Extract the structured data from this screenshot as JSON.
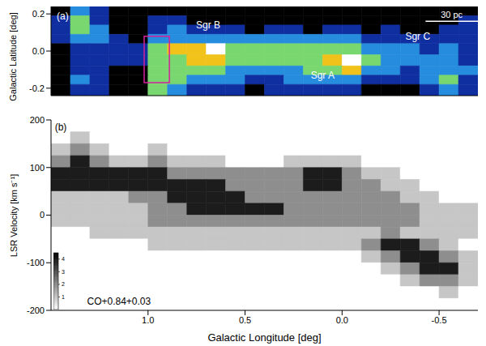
{
  "chart_data": [
    {
      "type": "heatmap",
      "ylabel": "Galactic Latitude [deg]",
      "color": "jet",
      "xlim": [
        1.5,
        -0.7
      ],
      "ylim": [
        -0.24,
        0.24
      ],
      "xticks": [
        {
          "value": 1.0,
          "label": "1.0"
        },
        0.5,
        {
          "value": 0,
          "label": "0.0"
        },
        -0.5
      ],
      "yticks": [
        -0.2,
        {
          "value": 0,
          "label": "0.0"
        },
        0.2
      ],
      "tick_labels": "y",
      "x_edges": [
        1.5,
        1.4,
        1.3,
        1.2,
        1.1,
        1.0,
        0.9,
        0.8,
        0.7,
        0.6,
        0.5,
        0.4,
        0.3,
        0.2,
        0.1,
        0.0,
        -0.1,
        -0.2,
        -0.3,
        -0.4,
        -0.5,
        -0.6,
        -0.7
      ],
      "y_edges": [
        0.24,
        0.19,
        0.14,
        0.09,
        0.04,
        -0.02,
        -0.08,
        -0.13,
        -0.18,
        -0.24
      ],
      "zlim": [
        0,
        5
      ],
      "z": [
        [
          0,
          2,
          1,
          0,
          0,
          0,
          0,
          0,
          0,
          0,
          0,
          0,
          0,
          0,
          0,
          0,
          0,
          0,
          0,
          0,
          0,
          0
        ],
        [
          1,
          3,
          1,
          0,
          0,
          1,
          1,
          0,
          0,
          0,
          0,
          0,
          0,
          0,
          0,
          0,
          0,
          0,
          0,
          0,
          0,
          1
        ],
        [
          1,
          3,
          2,
          0,
          0,
          1,
          2,
          1,
          1,
          1,
          0,
          1,
          1,
          0,
          1,
          1,
          0,
          1,
          0,
          0,
          1,
          1
        ],
        [
          1,
          2,
          2,
          1,
          0,
          2,
          2,
          2,
          2,
          2,
          2,
          2,
          2,
          2,
          2,
          2,
          1,
          1,
          1,
          1,
          1,
          1
        ],
        [
          0,
          1,
          1,
          1,
          1,
          3,
          4,
          4,
          5,
          3,
          3,
          3,
          3,
          3,
          3,
          3,
          2,
          2,
          2,
          1,
          2,
          1
        ],
        [
          0,
          1,
          1,
          1,
          1,
          3,
          3,
          4,
          4,
          3,
          3,
          3,
          3,
          3,
          4,
          5,
          3,
          2,
          2,
          2,
          2,
          1
        ],
        [
          0,
          1,
          1,
          0,
          0,
          3,
          3,
          3,
          3,
          2,
          2,
          2,
          2,
          3,
          3,
          4,
          2,
          2,
          1,
          2,
          2,
          2
        ],
        [
          0,
          2,
          1,
          0,
          0,
          3,
          3,
          2,
          2,
          2,
          1,
          1,
          2,
          2,
          2,
          2,
          1,
          1,
          1,
          2,
          3,
          1
        ],
        [
          0,
          1,
          1,
          0,
          0,
          3,
          2,
          1,
          1,
          1,
          0,
          1,
          1,
          1,
          1,
          1,
          0,
          0,
          0,
          1,
          2,
          1
        ]
      ],
      "box": {
        "x": [
          1.02,
          0.89
        ],
        "y": [
          0.08,
          -0.17
        ],
        "color": "#d4209c"
      },
      "scale_bar": {
        "label": "30 pc",
        "x": [
          -0.43,
          -0.7
        ],
        "y": 0.16
      },
      "annotations": [
        {
          "text": "(a)",
          "x": 1.44,
          "y": 0.19
        },
        {
          "text": "Sgr B",
          "x": 0.69,
          "y": 0.14
        },
        {
          "text": "Sgr A",
          "x": 0.1,
          "y": -0.13
        },
        {
          "text": "Sgr C",
          "x": -0.39,
          "y": 0.08
        }
      ]
    },
    {
      "type": "heatmap",
      "xlabel": "Galactic Longitude [deg]",
      "ylabel": "LSR Velocity [km s⁻¹]",
      "color": "gray",
      "xlim": [
        1.5,
        -0.7
      ],
      "ylim": [
        -200,
        200
      ],
      "xticks": [
        {
          "value": 1.0,
          "label": "1.0"
        },
        0.5,
        {
          "value": 0,
          "label": "0.0"
        },
        -0.5
      ],
      "yticks": [
        -200,
        -100,
        0,
        100,
        200
      ],
      "x_edges": [
        1.5,
        1.4,
        1.3,
        1.2,
        1.1,
        1.0,
        0.9,
        0.8,
        0.7,
        0.6,
        0.5,
        0.4,
        0.3,
        0.2,
        0.1,
        0.0,
        -0.1,
        -0.2,
        -0.3,
        -0.4,
        -0.5,
        -0.6,
        -0.7
      ],
      "y_edges": [
        200,
        175,
        150,
        125,
        100,
        75,
        50,
        25,
        0,
        -25,
        -50,
        -75,
        -100,
        -125,
        -150,
        -175,
        -200
      ],
      "colorbar": {
        "range": [
          0,
          4.5
        ],
        "ticks": [
          1,
          2,
          3,
          4
        ]
      },
      "z": [
        [
          0,
          0,
          0,
          0,
          0,
          0,
          0,
          0,
          0,
          0,
          0,
          0,
          0,
          0,
          0,
          0,
          0,
          0,
          0,
          0,
          0,
          0
        ],
        [
          0,
          1,
          0,
          0,
          0,
          0,
          0,
          0,
          0,
          0,
          0,
          0,
          0,
          0,
          0,
          0,
          0,
          0,
          0,
          0,
          0,
          0
        ],
        [
          1,
          2,
          1,
          0,
          0,
          1,
          0,
          0,
          0,
          0,
          0,
          0,
          0,
          0,
          0,
          0,
          0,
          0,
          0,
          0,
          0,
          0
        ],
        [
          2,
          4,
          2,
          1,
          1,
          2,
          1,
          1,
          1,
          0,
          0,
          0,
          1,
          1,
          1,
          1,
          0,
          0,
          0,
          0,
          0,
          0
        ],
        [
          4,
          4,
          4,
          4,
          4,
          4,
          2,
          2,
          2,
          2,
          2,
          2,
          2,
          4,
          4,
          2,
          1,
          1,
          0,
          0,
          0,
          0
        ],
        [
          4,
          4,
          4,
          4,
          4,
          4,
          4,
          4,
          4,
          2,
          2,
          2,
          2,
          4,
          4,
          2,
          2,
          1,
          1,
          0,
          0,
          0
        ],
        [
          1,
          1,
          1,
          1,
          2,
          2,
          4,
          4,
          4,
          4,
          2,
          2,
          2,
          2,
          2,
          2,
          2,
          2,
          1,
          1,
          0,
          0
        ],
        [
          1,
          1,
          1,
          1,
          1,
          2,
          2,
          4,
          4,
          4,
          4,
          4,
          2,
          2,
          2,
          2,
          2,
          2,
          2,
          1,
          1,
          1
        ],
        [
          1,
          1,
          1,
          1,
          1,
          2,
          2,
          2,
          2,
          2,
          2,
          2,
          2,
          2,
          2,
          2,
          2,
          2,
          2,
          1,
          1,
          1
        ],
        [
          0,
          0,
          1,
          1,
          1,
          1,
          1,
          1,
          1,
          1,
          1,
          1,
          1,
          1,
          1,
          1,
          1,
          2,
          1,
          1,
          1,
          1
        ],
        [
          0,
          0,
          0,
          0,
          0,
          1,
          1,
          1,
          1,
          1,
          1,
          1,
          1,
          1,
          1,
          1,
          2,
          4,
          4,
          2,
          1,
          0
        ],
        [
          0,
          0,
          0,
          0,
          0,
          0,
          0,
          0,
          0,
          0,
          0,
          0,
          0,
          0,
          0,
          0,
          1,
          2,
          4,
          4,
          2,
          1
        ],
        [
          0,
          0,
          0,
          0,
          0,
          0,
          0,
          0,
          0,
          0,
          0,
          0,
          0,
          0,
          0,
          0,
          0,
          1,
          2,
          4,
          4,
          1
        ],
        [
          0,
          0,
          0,
          0,
          0,
          0,
          0,
          0,
          0,
          0,
          0,
          0,
          0,
          0,
          0,
          0,
          0,
          0,
          1,
          2,
          2,
          1
        ],
        [
          0,
          0,
          0,
          0,
          0,
          0,
          0,
          0,
          0,
          0,
          0,
          0,
          0,
          0,
          0,
          0,
          0,
          0,
          0,
          0,
          1,
          0
        ],
        [
          0,
          0,
          0,
          0,
          0,
          0,
          0,
          0,
          0,
          0,
          0,
          0,
          0,
          0,
          0,
          0,
          0,
          0,
          0,
          0,
          0,
          0
        ]
      ],
      "annotations": [
        {
          "text": "(b)",
          "x": 1.45,
          "y": 185
        },
        {
          "text": "CO+0.84+0.03",
          "x": 1.15,
          "y": -180
        }
      ]
    }
  ]
}
